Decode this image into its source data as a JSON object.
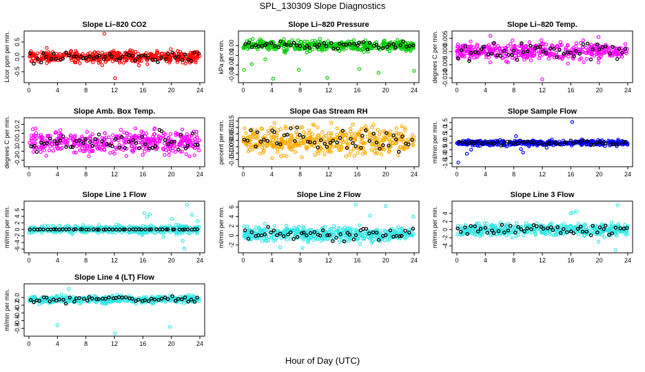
{
  "page": {
    "title": "SPL_130309  Slope Diagnostics",
    "xlabel": "Hour of Day (UTC)"
  },
  "chart_data": [
    {
      "type": "scatter",
      "title": "Slope Li–820 CO2",
      "ylabel": "Licor ppm per min.",
      "xlim": [
        0,
        24
      ],
      "ylim": [
        -0.8,
        0.8
      ],
      "yticks": [
        -0.5,
        0.0,
        0.5
      ],
      "xticks": [
        0,
        4,
        8,
        12,
        16,
        20,
        24
      ],
      "color": "#ff0000",
      "black_series": true,
      "spread": 0.13,
      "center": 0.0,
      "outliers": [
        [
          10.6,
          0.78
        ],
        [
          12.1,
          -0.72
        ],
        [
          10.3,
          -0.28
        ],
        [
          2.5,
          0.3
        ]
      ]
    },
    {
      "type": "scatter",
      "title": "Slope Li–820 Pressure",
      "ylabel": "kPa per min.",
      "xlim": [
        0,
        24
      ],
      "ylim": [
        -0.036,
        0.013
      ],
      "yticks": [
        -0.03,
        -0.02,
        -0.01,
        0.0
      ],
      "xticks": [
        0,
        4,
        8,
        12,
        16,
        20,
        24
      ],
      "color": "#00cc00",
      "black_series": true,
      "spread": 0.0035,
      "center": 0.0,
      "outliers": [
        [
          0.1,
          -0.025
        ],
        [
          1.2,
          -0.019
        ],
        [
          4.2,
          -0.034
        ],
        [
          7.8,
          -0.025
        ],
        [
          11.8,
          -0.033
        ],
        [
          16.3,
          -0.024
        ],
        [
          19.0,
          -0.028
        ],
        [
          24.0,
          -0.026
        ],
        [
          3.1,
          -0.014
        ]
      ]
    },
    {
      "type": "scatter",
      "title": "Slope Li–820 Temp.",
      "ylabel": "degrees C per min.",
      "xlim": [
        0,
        24
      ],
      "ylim": [
        -0.011,
        0.007
      ],
      "yticks": [
        -0.01,
        -0.005,
        0.0,
        0.005
      ],
      "xticks": [
        0,
        4,
        8,
        12,
        16,
        20,
        24
      ],
      "color": "#ff00ff",
      "black_series": true,
      "spread": 0.0022,
      "center": 0.0,
      "outliers": [
        [
          12.0,
          -0.0105
        ],
        [
          19.9,
          0.0055
        ],
        [
          4.7,
          0.006
        ],
        [
          15.6,
          -0.0045
        ]
      ]
    },
    {
      "type": "scatter",
      "title": "Slope Amb. Box Temp.",
      "ylabel": "degrees C per min.",
      "xlim": [
        0,
        24
      ],
      "ylim": [
        -0.25,
        0.25
      ],
      "yticks": [
        -0.2,
        -0.1,
        0.0,
        0.1,
        0.2
      ],
      "xticks": [
        0,
        4,
        8,
        12,
        16,
        20,
        24
      ],
      "color": "#ff00ff",
      "black_series": true,
      "spread": 0.085,
      "center": 0.0,
      "outliers": []
    },
    {
      "type": "scatter",
      "title": "Slope Gas Stream RH",
      "ylabel": "percent per min.",
      "xlim": [
        0,
        24
      ],
      "ylim": [
        -0.19,
        0.16
      ],
      "yticks": [
        -0.15,
        -0.1,
        -0.05,
        0.0,
        0.05,
        0.1,
        0.15
      ],
      "xticks": [
        0,
        4,
        8,
        12,
        16,
        20,
        24
      ],
      "color": "#ffaa00",
      "black_series": true,
      "spread": 0.07,
      "center": 0.0,
      "outliers": []
    },
    {
      "type": "scatter",
      "title": "Slope Sample Flow",
      "ylabel": "ml/min per min.",
      "xlim": [
        0,
        24
      ],
      "ylim": [
        -1.6,
        1.7
      ],
      "yticks": [
        -1.5,
        -1.0,
        -0.5,
        0.0,
        0.5,
        1.0,
        1.5
      ],
      "xticks": [
        0,
        4,
        8,
        12,
        16,
        20,
        24
      ],
      "color": "#0000ff",
      "black_series": true,
      "spread": 0.13,
      "center": 0.0,
      "outliers": [
        [
          0.2,
          -1.45
        ],
        [
          1.4,
          -0.8
        ],
        [
          9.3,
          -0.7
        ],
        [
          9.0,
          -0.45
        ],
        [
          16.2,
          1.55
        ],
        [
          8.3,
          0.5
        ],
        [
          12.6,
          -0.35
        ],
        [
          2.0,
          -0.5
        ]
      ]
    },
    {
      "type": "scatter",
      "title": "Slope Line 1 Flow",
      "ylabel": "ml/min per min.",
      "xlim": [
        0,
        24
      ],
      "ylim": [
        -6.5,
        8
      ],
      "yticks": [
        -6,
        -4,
        -2,
        0,
        2,
        4,
        6
      ],
      "xticks": [
        0,
        4,
        8,
        12,
        16,
        20,
        24
      ],
      "color": "#33e6e6",
      "black_series": true,
      "black_flat": true,
      "spread": 0.8,
      "center": 0.0,
      "outliers": [
        [
          16.2,
          5.0
        ],
        [
          17.0,
          4.6
        ],
        [
          20.1,
          3.2
        ],
        [
          21.6,
          -3.5
        ],
        [
          22.2,
          7.5
        ],
        [
          21.8,
          -5.8
        ],
        [
          22.9,
          4.5
        ],
        [
          23.7,
          2.5
        ],
        [
          16.6,
          3.8
        ],
        [
          18.9,
          -2.2
        ]
      ]
    },
    {
      "type": "scatter",
      "title": "Slope Line 2 Flow",
      "ylabel": "ml/min per min.",
      "xlim": [
        0,
        24
      ],
      "ylim": [
        -3.2,
        6.8
      ],
      "yticks": [
        -2,
        0,
        2,
        4,
        6
      ],
      "xticks": [
        0,
        4,
        8,
        12,
        16,
        20,
        24
      ],
      "color": "#33e6e6",
      "black_series": true,
      "spread": 1.0,
      "center": 0.3,
      "outliers": [
        [
          15.8,
          6.5
        ],
        [
          20.0,
          6.2
        ],
        [
          17.8,
          4.2
        ],
        [
          23.9,
          4.0
        ],
        [
          5.2,
          -2.5
        ],
        [
          8.3,
          -2.6
        ]
      ]
    },
    {
      "type": "scatter",
      "title": "Slope Line 3 Flow",
      "ylabel": "ml/min per min.",
      "xlim": [
        0,
        24
      ],
      "ylim": [
        -5.2,
        6.5
      ],
      "yticks": [
        -4,
        -2,
        0,
        2,
        4
      ],
      "xticks": [
        0,
        4,
        8,
        12,
        16,
        20,
        24
      ],
      "color": "#33e6e6",
      "black_series": true,
      "spread": 1.0,
      "center": 0.0,
      "outliers": [
        [
          16.3,
          4.2
        ],
        [
          16.8,
          4.5
        ],
        [
          22.3,
          -5.0
        ],
        [
          22.6,
          6.0
        ],
        [
          19.9,
          -3.0
        ],
        [
          16.0,
          4.0
        ]
      ]
    },
    {
      "type": "scatter",
      "title": "Slope Line 4 (LT) Flow",
      "ylabel": "ml/min per min.",
      "xlim": [
        0,
        24
      ],
      "ylim": [
        -0.95,
        0.3
      ],
      "yticks": [
        -0.8,
        -0.6,
        -0.4,
        -0.2,
        0.0
      ],
      "xticks": [
        0,
        4,
        8,
        12,
        16,
        20,
        24
      ],
      "color": "#33e6e6",
      "black_series": true,
      "spread": 0.06,
      "center": -0.05,
      "outliers": [
        [
          4.0,
          -0.72
        ],
        [
          12.1,
          -0.93
        ],
        [
          19.8,
          -0.76
        ],
        [
          5.6,
          0.22
        ]
      ]
    }
  ]
}
